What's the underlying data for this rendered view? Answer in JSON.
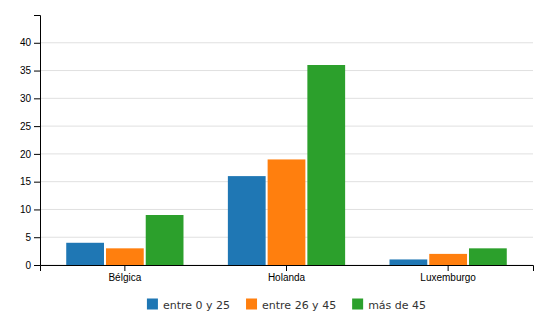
{
  "chart_data": {
    "type": "bar",
    "categories": [
      "Bélgica",
      "Holanda",
      "Luxemburgo"
    ],
    "series": [
      {
        "name": "entre 0 y 25",
        "values": [
          4,
          16,
          1
        ]
      },
      {
        "name": "entre 26 y 45",
        "values": [
          3,
          19,
          2
        ]
      },
      {
        "name": "más de 45",
        "values": [
          9,
          36,
          3
        ]
      }
    ],
    "ylim": [
      0,
      45
    ],
    "yticks": [
      0,
      5,
      10,
      15,
      20,
      25,
      30,
      35,
      40
    ],
    "grid": true,
    "legend": "bottom"
  }
}
